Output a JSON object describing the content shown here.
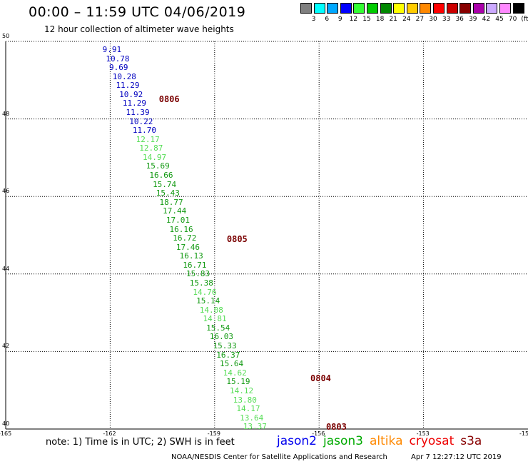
{
  "header": {
    "title": "00:00 – 11:59 UTC 04/06/2019",
    "subtitle": "12 hour collection of altimeter wave heights"
  },
  "legend": {
    "unit": "(ft)",
    "swatches": [
      {
        "label": "3",
        "color": "#808080"
      },
      {
        "label": "6",
        "color": "#00ffff"
      },
      {
        "label": "9",
        "color": "#00a8ff"
      },
      {
        "label": "12",
        "color": "#0000ff"
      },
      {
        "label": "15",
        "color": "#33ff33"
      },
      {
        "label": "18",
        "color": "#00cc00"
      },
      {
        "label": "21",
        "color": "#008800"
      },
      {
        "label": "24",
        "color": "#ffff00"
      },
      {
        "label": "27",
        "color": "#ffcc00"
      },
      {
        "label": "30",
        "color": "#ff8800"
      },
      {
        "label": "33",
        "color": "#ff0000"
      },
      {
        "label": "36",
        "color": "#cc0000"
      },
      {
        "label": "39",
        "color": "#880000"
      },
      {
        "label": "42",
        "color": "#aa00aa"
      },
      {
        "label": "45",
        "color": "#ccaaff"
      },
      {
        "label": "70",
        "color": "#ff88ff"
      },
      {
        "label": "",
        "color": "#000000"
      }
    ]
  },
  "map": {
    "lat_range": [
      40,
      50
    ],
    "lon_range": [
      -165,
      -150
    ],
    "y_ticks": [
      {
        "label": "50",
        "value": 50
      },
      {
        "label": "48",
        "value": 48
      },
      {
        "label": "46",
        "value": 46
      },
      {
        "label": "44",
        "value": 44
      },
      {
        "label": "42",
        "value": 42
      },
      {
        "label": "40",
        "value": 40
      }
    ],
    "x_ticks": [
      {
        "label": "-165",
        "value": -165
      },
      {
        "label": "-162",
        "value": -162
      },
      {
        "label": "-159",
        "value": -159
      },
      {
        "label": "-156",
        "value": -156
      },
      {
        "label": "-153",
        "value": -153
      },
      {
        "label": "-150",
        "value": -150
      }
    ],
    "track": {
      "start": {
        "lat": 49.78,
        "lon": -162.22
      },
      "end": {
        "lat": 40.05,
        "lon": -158.18
      },
      "values": [
        {
          "v": "9.91",
          "c": "#0000c0"
        },
        {
          "v": "10.78",
          "c": "#0000c0"
        },
        {
          "v": "9.69",
          "c": "#0000c0"
        },
        {
          "v": "10.28",
          "c": "#0000c0"
        },
        {
          "v": "11.29",
          "c": "#0000c0"
        },
        {
          "v": "10.92",
          "c": "#0000c0"
        },
        {
          "v": "11.29",
          "c": "#0000c0"
        },
        {
          "v": "11.39",
          "c": "#0000c0"
        },
        {
          "v": "10.22",
          "c": "#0000c0"
        },
        {
          "v": "11.70",
          "c": "#0000c0"
        },
        {
          "v": "12.17",
          "c": "#55dd55"
        },
        {
          "v": "12.87",
          "c": "#55dd55"
        },
        {
          "v": "14.97",
          "c": "#55dd55"
        },
        {
          "v": "15.69",
          "c": "#119911"
        },
        {
          "v": "16.66",
          "c": "#119911"
        },
        {
          "v": "15.74",
          "c": "#119911"
        },
        {
          "v": "15.43",
          "c": "#119911"
        },
        {
          "v": "18.77",
          "c": "#119911"
        },
        {
          "v": "17.44",
          "c": "#119911"
        },
        {
          "v": "17.01",
          "c": "#119911"
        },
        {
          "v": "16.16",
          "c": "#119911"
        },
        {
          "v": "16.72",
          "c": "#119911"
        },
        {
          "v": "17.46",
          "c": "#119911"
        },
        {
          "v": "16.13",
          "c": "#119911"
        },
        {
          "v": "16.71",
          "c": "#119911"
        },
        {
          "v": "15.83",
          "c": "#119911"
        },
        {
          "v": "15.38",
          "c": "#119911"
        },
        {
          "v": "14.76",
          "c": "#55dd55"
        },
        {
          "v": "15.14",
          "c": "#119911"
        },
        {
          "v": "14.08",
          "c": "#55dd55"
        },
        {
          "v": "14.81",
          "c": "#55dd55"
        },
        {
          "v": "15.54",
          "c": "#119911"
        },
        {
          "v": "16.03",
          "c": "#119911"
        },
        {
          "v": "15.33",
          "c": "#119911"
        },
        {
          "v": "16.37",
          "c": "#119911"
        },
        {
          "v": "15.64",
          "c": "#119911"
        },
        {
          "v": "14.62",
          "c": "#55dd55"
        },
        {
          "v": "15.19",
          "c": "#119911"
        },
        {
          "v": "14.12",
          "c": "#55dd55"
        },
        {
          "v": "13.80",
          "c": "#55dd55"
        },
        {
          "v": "14.17",
          "c": "#55dd55"
        },
        {
          "v": "13.64",
          "c": "#55dd55"
        },
        {
          "v": "13.37",
          "c": "#55dd55"
        }
      ]
    },
    "date_labels": [
      {
        "text": "0806",
        "lat": 48.5,
        "lon": -160.6
      },
      {
        "text": "0805",
        "lat": 44.9,
        "lon": -158.65
      },
      {
        "text": "0804",
        "lat": 41.3,
        "lon": -156.25
      },
      {
        "text": "0803",
        "lat": 40.05,
        "lon": -155.8
      }
    ]
  },
  "footer": {
    "note": "note: 1) Time is in UTC; 2) SWH is in feet",
    "satellites": [
      {
        "name": "jason2",
        "color": "#0000ee"
      },
      {
        "name": "jason3",
        "color": "#00aa00"
      },
      {
        "name": "altika",
        "color": "#ff8800"
      },
      {
        "name": "cryosat",
        "color": "#ee0000"
      },
      {
        "name": "s3a",
        "color": "#880000"
      }
    ],
    "credit": "NOAA/NESDIS Center for Satellite Applications and Research",
    "timestamp": "Apr  7 12:27:12 UTC 2019"
  }
}
